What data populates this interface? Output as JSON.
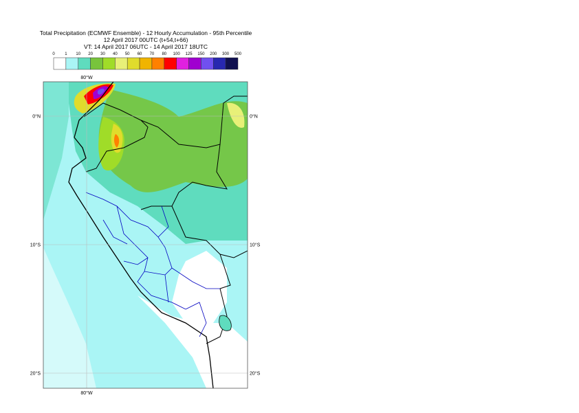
{
  "header": {
    "title": "Total Precipitation (ECMWF Ensemble) - 12 Hourly Accumulation - 95th Percentile",
    "run": "12 April 2017 00UTC (t+54,t+66)",
    "valid": "VT: 14 April 2017 06UTC - 14 April 2017 18UTC"
  },
  "legend": {
    "thresholds": [
      "0",
      "1",
      "10",
      "20",
      "30",
      "40",
      "50",
      "60",
      "70",
      "80",
      "100",
      "125",
      "150",
      "200",
      "300",
      "500"
    ],
    "colors": [
      "#ffffff",
      "#aaf5f5",
      "#5fdcbe",
      "#78c43c",
      "#a0dc28",
      "#e8f078",
      "#e0dc2c",
      "#f0b400",
      "#ff8000",
      "#ff0000",
      "#e020e0",
      "#a000d0",
      "#7050f0",
      "#2828b0",
      "#101050"
    ]
  },
  "map": {
    "lon_top": "80°W",
    "lon_bottom": "80°W",
    "lat_labels": [
      {
        "left": "0°N",
        "right": "0°N"
      },
      {
        "left": "10°S",
        "right": "10°S"
      },
      {
        "left": "20°S",
        "right": "20°S"
      }
    ]
  }
}
